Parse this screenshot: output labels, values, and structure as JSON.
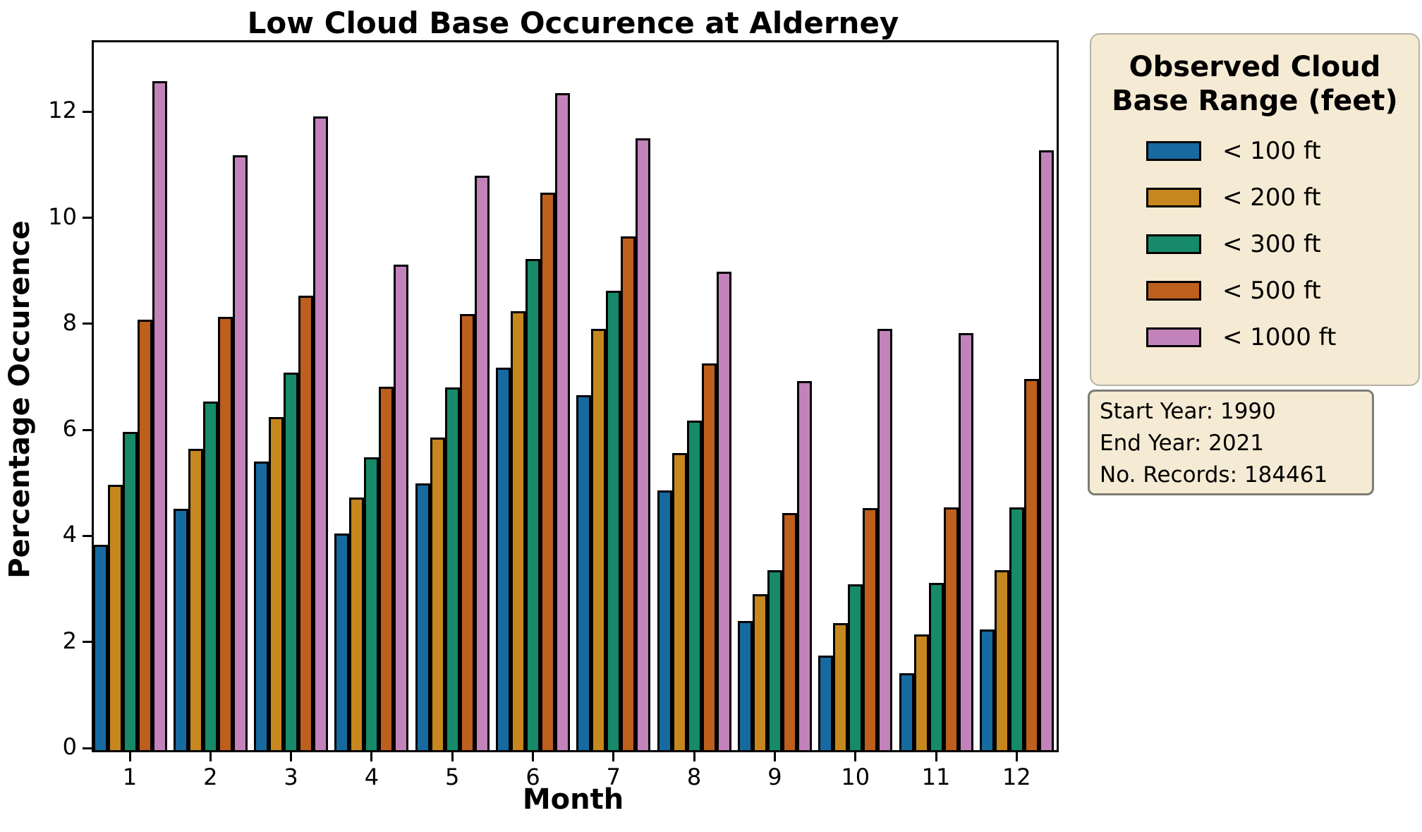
{
  "title": "Low Cloud Base Occurence at Alderney",
  "axes": {
    "x_label": "Month",
    "y_label": "Percentage Occurence",
    "y_ticks": [
      0,
      2,
      4,
      6,
      8,
      10,
      12
    ],
    "x_ticks": [
      "1",
      "2",
      "3",
      "4",
      "5",
      "6",
      "7",
      "8",
      "9",
      "10",
      "11",
      "12"
    ]
  },
  "legend": {
    "title": "Observed Cloud\nBase Range (feet)",
    "items": [
      {
        "label": "< 100 ft",
        "color": "#176A9F"
      },
      {
        "label": "< 200 ft",
        "color": "#C6871E"
      },
      {
        "label": "< 300 ft",
        "color": "#168A69"
      },
      {
        "label": "< 500 ft",
        "color": "#BD5F1D"
      },
      {
        "label": "< 1000 ft",
        "color": "#C282BA"
      }
    ]
  },
  "info_box": {
    "text": "Start Year: 1990\nEnd Year: 2021\nNo. Records: 184461"
  },
  "chart_data": {
    "type": "bar",
    "title": "Low Cloud Base Occurence at Alderney",
    "xlabel": "Month",
    "ylabel": "Percentage Occurence",
    "categories": [
      1,
      2,
      3,
      4,
      5,
      6,
      7,
      8,
      9,
      10,
      11,
      12
    ],
    "series": [
      {
        "name": "< 100 ft",
        "color": "#176A9F",
        "values": [
          3.87,
          4.55,
          5.45,
          4.08,
          5.03,
          7.22,
          6.7,
          4.9,
          2.43,
          1.78,
          1.45,
          2.28
        ]
      },
      {
        "name": "< 200 ft",
        "color": "#C6871E",
        "values": [
          5.0,
          5.68,
          6.28,
          4.77,
          5.89,
          8.28,
          7.95,
          5.61,
          2.94,
          2.4,
          2.18,
          3.4
        ]
      },
      {
        "name": "< 300 ft",
        "color": "#168A69",
        "values": [
          6.0,
          6.58,
          7.12,
          5.53,
          6.84,
          9.26,
          8.67,
          6.22,
          3.39,
          3.13,
          3.15,
          4.58
        ]
      },
      {
        "name": "< 500 ft",
        "color": "#BD5F1D",
        "values": [
          8.12,
          8.17,
          8.57,
          6.85,
          8.22,
          10.51,
          9.69,
          7.29,
          4.47,
          4.56,
          4.58,
          7.0
        ]
      },
      {
        "name": "< 1000 ft",
        "color": "#C282BA",
        "values": [
          12.62,
          11.22,
          11.95,
          9.16,
          10.84,
          12.39,
          11.54,
          9.02,
          6.96,
          7.95,
          7.86,
          11.31
        ]
      }
    ],
    "ylim": [
      0,
      13.35
    ],
    "grid": false,
    "legend_position": "outside-right",
    "legend_title": "Observed Cloud Base Range (feet)"
  }
}
